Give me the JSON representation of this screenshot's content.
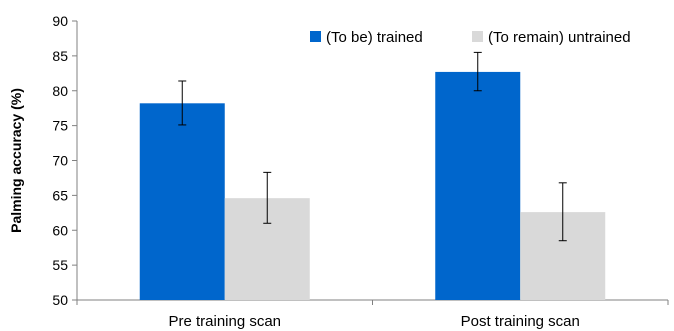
{
  "chart_data": {
    "type": "bar",
    "title": "",
    "xlabel": "",
    "ylabel": "Palming accuracy (%)",
    "ylim": [
      50,
      90
    ],
    "yticks": [
      50,
      55,
      60,
      65,
      70,
      75,
      80,
      85,
      90
    ],
    "categories": [
      "Pre training scan",
      "Post training scan"
    ],
    "series": [
      {
        "name": "(To be) trained",
        "color": "#0066cc",
        "values": [
          78.2,
          82.7
        ],
        "error": [
          [
            75.1,
            81.4
          ],
          [
            80.0,
            85.5
          ]
        ]
      },
      {
        "name": "(To remain) untrained",
        "color": "#d9d9d9",
        "values": [
          64.6,
          62.6
        ],
        "error": [
          [
            61.0,
            68.3
          ],
          [
            58.5,
            66.8
          ]
        ]
      }
    ],
    "legend": "top-right",
    "grid": false
  }
}
